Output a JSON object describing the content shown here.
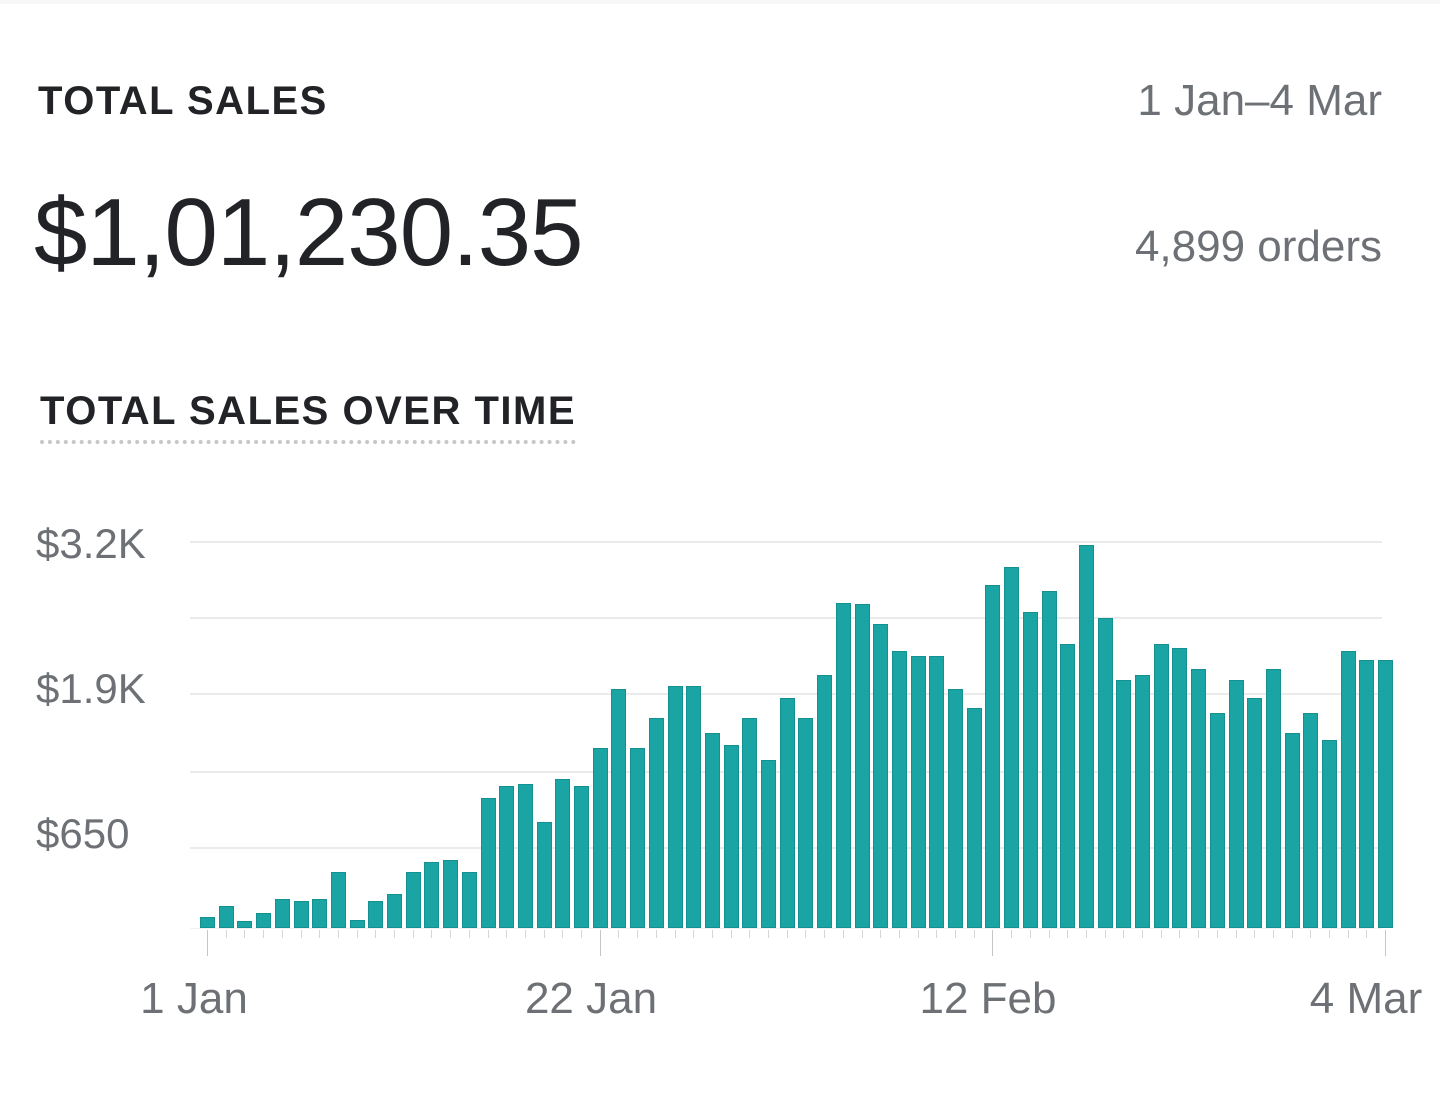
{
  "summary": {
    "label": "TOTAL SALES",
    "total": "$1,01,230.35",
    "date_range": "1 Jan–4 Mar",
    "orders": "4,899 orders"
  },
  "chart_title": "TOTAL SALES OVER TIME",
  "colors": {
    "bar": "#1ba4a4",
    "text_primary": "#212326",
    "text_secondary": "#6d7175",
    "gridline": "#ebebeb"
  },
  "y_axis": {
    "labels": [
      "$3.2K",
      "$1.9K",
      "$650"
    ]
  },
  "x_axis": {
    "labels": [
      "1 Jan",
      "22 Jan",
      "12 Feb",
      "4 Mar"
    ]
  },
  "chart_data": {
    "type": "bar",
    "title": "TOTAL SALES OVER TIME",
    "xlabel": "",
    "ylabel": "",
    "ylim": [
      0,
      3200
    ],
    "grid": true,
    "legend": "none",
    "y_ticks": [
      650,
      1900,
      3200
    ],
    "y_tick_labels": [
      "$650",
      "$1.9K",
      "$3.2K"
    ],
    "x_tick_labels": [
      "1 Jan",
      "22 Jan",
      "12 Feb",
      "4 Mar"
    ],
    "categories": [
      "1 Jan",
      "2 Jan",
      "3 Jan",
      "4 Jan",
      "5 Jan",
      "6 Jan",
      "7 Jan",
      "8 Jan",
      "9 Jan",
      "10 Jan",
      "11 Jan",
      "12 Jan",
      "13 Jan",
      "14 Jan",
      "15 Jan",
      "16 Jan",
      "17 Jan",
      "18 Jan",
      "19 Jan",
      "20 Jan",
      "21 Jan",
      "22 Jan",
      "23 Jan",
      "24 Jan",
      "25 Jan",
      "26 Jan",
      "27 Jan",
      "28 Jan",
      "29 Jan",
      "30 Jan",
      "31 Jan",
      "1 Feb",
      "2 Feb",
      "3 Feb",
      "4 Feb",
      "5 Feb",
      "6 Feb",
      "7 Feb",
      "8 Feb",
      "9 Feb",
      "10 Feb",
      "11 Feb",
      "12 Feb",
      "13 Feb",
      "14 Feb",
      "15 Feb",
      "16 Feb",
      "17 Feb",
      "18 Feb",
      "19 Feb",
      "20 Feb",
      "21 Feb",
      "22 Feb",
      "23 Feb",
      "24 Feb",
      "25 Feb",
      "26 Feb",
      "27 Feb",
      "28 Feb",
      "29 Feb",
      "1 Mar",
      "2 Mar",
      "3 Mar",
      "4 Mar"
    ],
    "values": [
      90,
      180,
      60,
      125,
      240,
      225,
      240,
      465,
      65,
      225,
      280,
      465,
      550,
      565,
      465,
      1080,
      1180,
      1195,
      880,
      1235,
      1180,
      1500,
      1985,
      1500,
      1745,
      2010,
      2010,
      1620,
      1520,
      1745,
      1400,
      1910,
      1745,
      2100,
      2705,
      2690,
      2530,
      2305,
      2265,
      2265,
      1985,
      1825,
      2855,
      3005,
      2630,
      2805,
      2365,
      3185,
      2580,
      2065,
      2100,
      2365,
      2330,
      2150,
      1785,
      2065,
      1910,
      2150,
      1620,
      1785,
      1560,
      2300,
      2225,
      2225
    ]
  }
}
